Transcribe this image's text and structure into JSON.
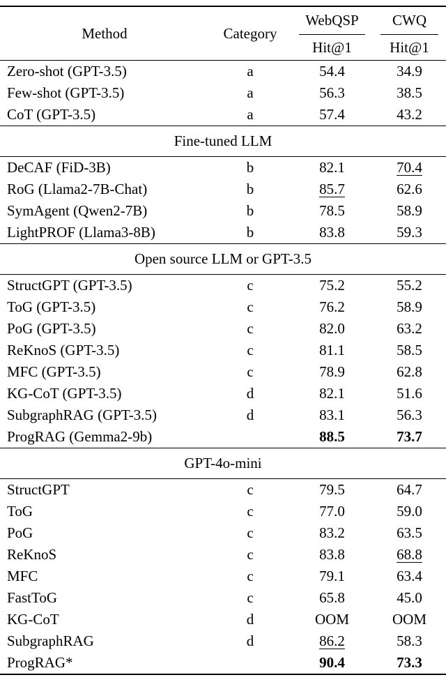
{
  "page": {
    "background_color": "#ffffff",
    "text_color": "#000000"
  },
  "table": {
    "header": {
      "method": "Method",
      "category": "Category",
      "dataset1": "WebQSP",
      "dataset2": "CWQ",
      "metric": "Hit@1"
    },
    "sections": [
      {
        "title": "",
        "rows": [
          {
            "method": "Zero-shot (GPT-3.5)",
            "category": "a",
            "webqsp": {
              "text": "54.4"
            },
            "cwq": {
              "text": "34.9"
            }
          },
          {
            "method": "Few-shot (GPT-3.5)",
            "category": "a",
            "webqsp": {
              "text": "56.3"
            },
            "cwq": {
              "text": "38.5"
            }
          },
          {
            "method": "CoT (GPT-3.5)",
            "category": "a",
            "webqsp": {
              "text": "57.4"
            },
            "cwq": {
              "text": "43.2"
            }
          }
        ]
      },
      {
        "title": "Fine-tuned LLM",
        "rows": [
          {
            "method": "DeCAF (FiD-3B)",
            "category": "b",
            "webqsp": {
              "text": "82.1"
            },
            "cwq": {
              "text": "70.4",
              "underline": true
            }
          },
          {
            "method": "RoG (Llama2-7B-Chat)",
            "category": "b",
            "webqsp": {
              "text": "85.7",
              "underline": true
            },
            "cwq": {
              "text": "62.6"
            }
          },
          {
            "method": "SymAgent (Qwen2-7B)",
            "category": "b",
            "webqsp": {
              "text": "78.5"
            },
            "cwq": {
              "text": "58.9"
            }
          },
          {
            "method": "LightPROF (Llama3-8B)",
            "category": "b",
            "webqsp": {
              "text": "83.8"
            },
            "cwq": {
              "text": "59.3"
            }
          }
        ]
      },
      {
        "title": "Open source LLM or GPT-3.5",
        "rows": [
          {
            "method": "StructGPT (GPT-3.5)",
            "category": "c",
            "webqsp": {
              "text": "75.2"
            },
            "cwq": {
              "text": "55.2"
            }
          },
          {
            "method": "ToG (GPT-3.5)",
            "category": "c",
            "webqsp": {
              "text": "76.2"
            },
            "cwq": {
              "text": "58.9"
            }
          },
          {
            "method": "PoG (GPT-3.5)",
            "category": "c",
            "webqsp": {
              "text": "82.0"
            },
            "cwq": {
              "text": "63.2"
            }
          },
          {
            "method": "ReKnoS (GPT-3.5)",
            "category": "c",
            "webqsp": {
              "text": "81.1"
            },
            "cwq": {
              "text": "58.5"
            }
          },
          {
            "method": "MFC (GPT-3.5)",
            "category": "c",
            "webqsp": {
              "text": "78.9"
            },
            "cwq": {
              "text": "62.8"
            }
          },
          {
            "method": "KG-CoT (GPT-3.5)",
            "category": "d",
            "webqsp": {
              "text": "82.1"
            },
            "cwq": {
              "text": "51.6"
            }
          },
          {
            "method": "SubgraphRAG (GPT-3.5)",
            "category": "d",
            "webqsp": {
              "text": "83.1"
            },
            "cwq": {
              "text": "56.3"
            }
          },
          {
            "method": "ProgRAG (Gemma2-9b)",
            "category": "",
            "webqsp": {
              "text": "88.5",
              "bold": true
            },
            "cwq": {
              "text": "73.7",
              "bold": true
            }
          }
        ]
      },
      {
        "title": "GPT-4o-mini",
        "rows": [
          {
            "method": "StructGPT",
            "category": "c",
            "webqsp": {
              "text": "79.5"
            },
            "cwq": {
              "text": "64.7"
            }
          },
          {
            "method": "ToG",
            "category": "c",
            "webqsp": {
              "text": "77.0"
            },
            "cwq": {
              "text": "59.0"
            }
          },
          {
            "method": "PoG",
            "category": "c",
            "webqsp": {
              "text": "83.2"
            },
            "cwq": {
              "text": "63.5"
            }
          },
          {
            "method": "ReKnoS",
            "category": "c",
            "webqsp": {
              "text": "83.8"
            },
            "cwq": {
              "text": "68.8",
              "underline": true
            }
          },
          {
            "method": "MFC",
            "category": "c",
            "webqsp": {
              "text": "79.1"
            },
            "cwq": {
              "text": "63.4"
            }
          },
          {
            "method": "FastToG",
            "category": "c",
            "webqsp": {
              "text": "65.8"
            },
            "cwq": {
              "text": "45.0"
            }
          },
          {
            "method": "KG-CoT",
            "category": "d",
            "webqsp": {
              "text": "OOM"
            },
            "cwq": {
              "text": "OOM"
            }
          },
          {
            "method": "SubgraphRAG",
            "category": "d",
            "webqsp": {
              "text": "86.2",
              "underline": true
            },
            "cwq": {
              "text": "58.3"
            }
          },
          {
            "method": "ProgRAG*",
            "category": "",
            "webqsp": {
              "text": "90.4",
              "bold": true
            },
            "cwq": {
              "text": "73.3",
              "bold": true
            }
          }
        ]
      }
    ]
  }
}
